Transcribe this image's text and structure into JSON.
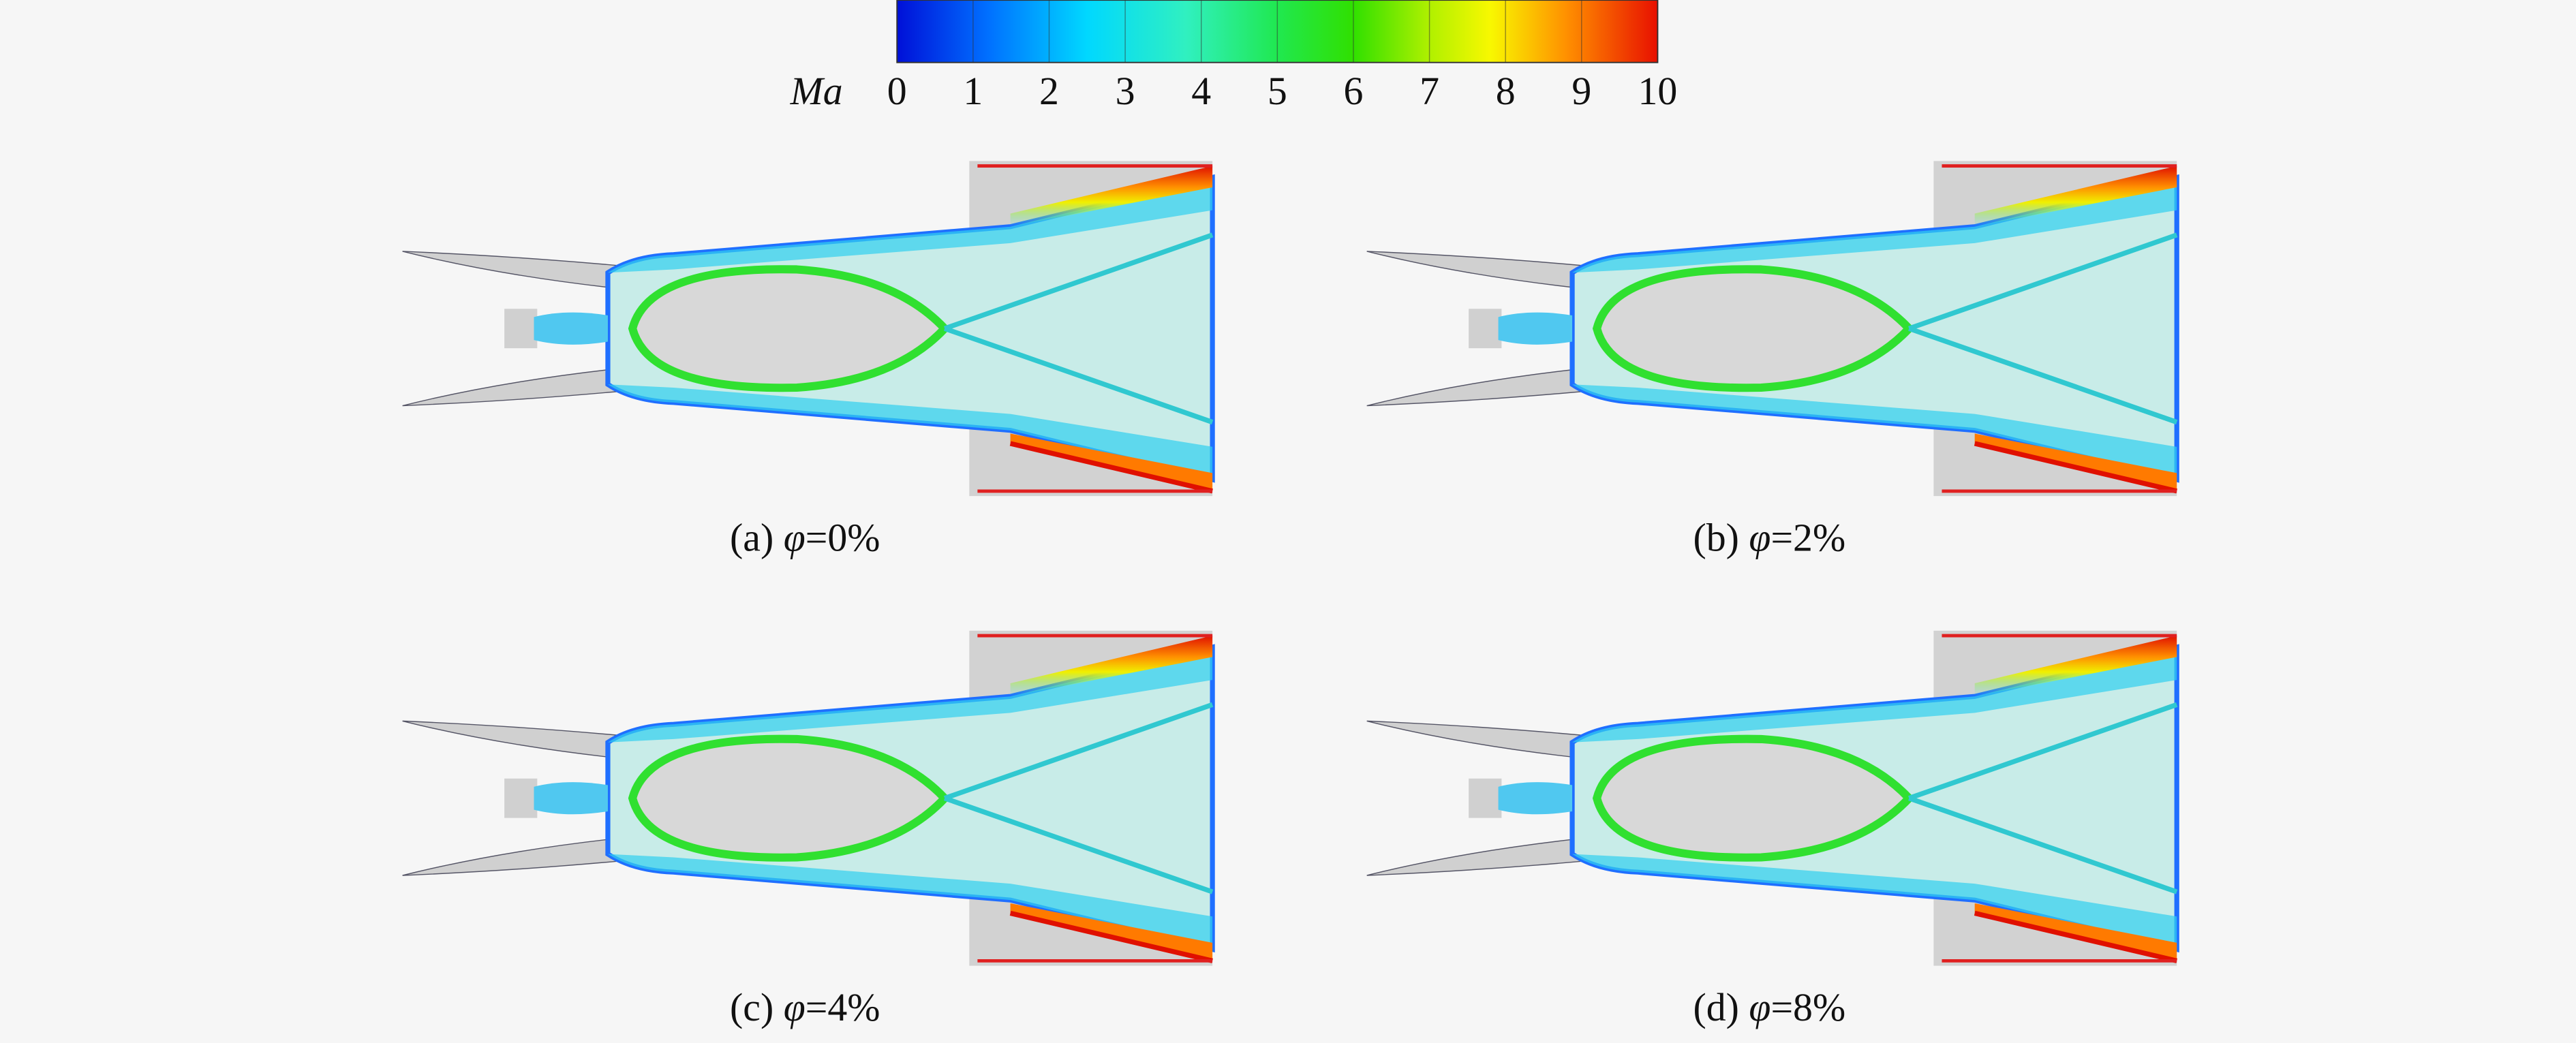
{
  "colorbar": {
    "label": "Ma",
    "range": [
      0,
      10
    ],
    "ticks": [
      0,
      1,
      2,
      3,
      4,
      5,
      6,
      7,
      8,
      9,
      10
    ]
  },
  "panels": [
    {
      "letter": "(a)",
      "variable": "φ",
      "value_text": "=0%"
    },
    {
      "letter": "(b)",
      "variable": "φ",
      "value_text": "=2%"
    },
    {
      "letter": "(c)",
      "variable": "φ",
      "value_text": "=4%"
    },
    {
      "letter": "(d)",
      "variable": "φ",
      "value_text": "=8%"
    }
  ]
}
